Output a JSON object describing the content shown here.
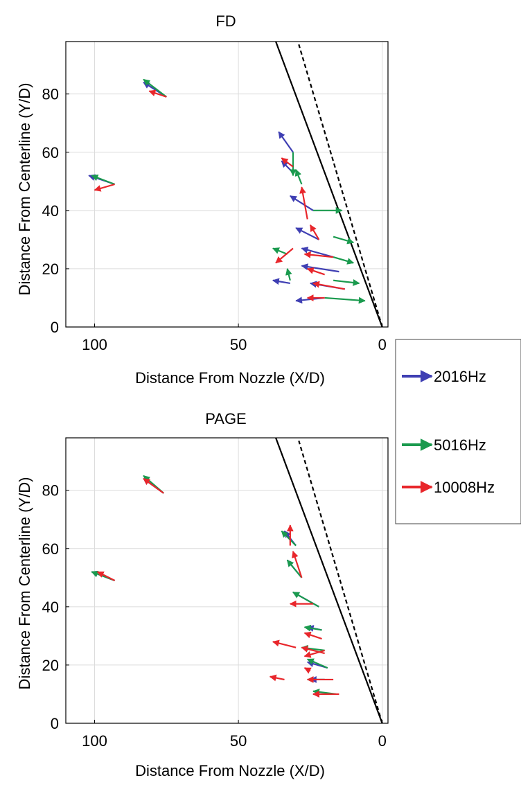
{
  "legend": {
    "entries": [
      {
        "label": "2016Hz",
        "color": "#3f3fb3"
      },
      {
        "label": "5016Hz",
        "color": "#1a9a4e"
      },
      {
        "label": "10008Hz",
        "color": "#e8262b"
      }
    ]
  },
  "chart_data": [
    {
      "type": "vector",
      "title": "FD",
      "xlabel": "Distance From Nozzle (X/D)",
      "ylabel": "Distance From Centerline (Y/D)",
      "x_reversed": true,
      "xlim": [
        110,
        -2
      ],
      "ylim": [
        0,
        98
      ],
      "xticks": [
        100,
        50,
        0
      ],
      "yticks": [
        0,
        20,
        40,
        60,
        80
      ],
      "grid": true,
      "jet_lines": [
        {
          "style": "solid",
          "points": [
            [
              0,
              0
            ],
            [
              37,
              98
            ]
          ]
        },
        {
          "style": "dashed",
          "points": [
            [
              0,
              0
            ],
            [
              29,
              97
            ]
          ]
        }
      ],
      "series": [
        {
          "name": "2016Hz",
          "color": "#3f3fb3",
          "arrows": [
            [
              75,
              79,
              83,
              84
            ],
            [
              93,
              49,
              102,
              52
            ],
            [
              31,
              60,
              36,
              67
            ],
            [
              31,
              53,
              35,
              57
            ],
            [
              24,
              40,
              32,
              45
            ],
            [
              22,
              30,
              30,
              34
            ],
            [
              17,
              24,
              28,
              27
            ],
            [
              32,
              15,
              38,
              16
            ],
            [
              15,
              19,
              28,
              21
            ],
            [
              13,
              13,
              25,
              15
            ],
            [
              20,
              10,
              30,
              9
            ]
          ]
        },
        {
          "name": "5016Hz",
          "color": "#1a9a4e",
          "arrows": [
            [
              75,
              79,
              83,
              85
            ],
            [
              93,
              49,
              101,
              52
            ],
            [
              31,
              60,
              31,
              52
            ],
            [
              28,
              49,
              30,
              54
            ],
            [
              24,
              40,
              14,
              40
            ],
            [
              17,
              31,
              10,
              29
            ],
            [
              17,
              24,
              10,
              22
            ],
            [
              33,
              25,
              38,
              27
            ],
            [
              32,
              16,
              33,
              20
            ],
            [
              17,
              16,
              8,
              15
            ],
            [
              20,
              10,
              6,
              9
            ]
          ]
        },
        {
          "name": "10008Hz",
          "color": "#e8262b",
          "arrows": [
            [
              75,
              79,
              81,
              81
            ],
            [
              93,
              49,
              100,
              47
            ],
            [
              31,
              55,
              35,
              58
            ],
            [
              26,
              37,
              28,
              48
            ],
            [
              22,
              30,
              25,
              35
            ],
            [
              17,
              24,
              27,
              25
            ],
            [
              31,
              27,
              37,
              22
            ],
            [
              20,
              18,
              26,
              20
            ],
            [
              13,
              13,
              24,
              15
            ],
            [
              20,
              10,
              26,
              10
            ]
          ]
        }
      ]
    },
    {
      "type": "vector",
      "title": "PAGE",
      "xlabel": "Distance From Nozzle (X/D)",
      "ylabel": "Distance From Centerline (Y/D)",
      "x_reversed": true,
      "xlim": [
        110,
        -2
      ],
      "ylim": [
        0,
        98
      ],
      "xticks": [
        100,
        50,
        0
      ],
      "yticks": [
        0,
        20,
        40,
        60,
        80
      ],
      "grid": true,
      "jet_lines": [
        {
          "style": "solid",
          "points": [
            [
              0,
              0
            ],
            [
              37,
              98
            ]
          ]
        },
        {
          "style": "dashed",
          "points": [
            [
              0,
              0
            ],
            [
              29,
              97
            ]
          ]
        }
      ],
      "series": [
        {
          "name": "2016Hz",
          "color": "#3f3fb3",
          "arrows": [
            [
              76,
              79,
              83,
              84
            ],
            [
              93,
              49,
              101,
              52
            ],
            [
              30,
              61,
              34,
              66
            ],
            [
              28,
              50,
              33,
              56
            ],
            [
              22,
              40,
              31,
              45
            ],
            [
              21,
              32,
              26,
              33
            ],
            [
              19,
              19,
              26,
              21
            ],
            [
              20,
              15,
              25,
              15
            ],
            [
              18,
              10,
              24,
              10
            ]
          ]
        },
        {
          "name": "5016Hz",
          "color": "#1a9a4e",
          "arrows": [
            [
              76,
              79,
              83,
              85
            ],
            [
              93,
              49,
              101,
              52
            ],
            [
              30,
              61,
              35,
              66
            ],
            [
              28,
              50,
              33,
              56
            ],
            [
              22,
              40,
              31,
              45
            ],
            [
              21,
              32,
              27,
              33
            ],
            [
              20,
              25,
              28,
              26
            ],
            [
              19,
              19,
              26,
              22
            ],
            [
              20,
              15,
              26,
              15
            ],
            [
              16,
              10,
              24,
              11
            ]
          ]
        },
        {
          "name": "10008Hz",
          "color": "#e8262b",
          "arrows": [
            [
              76,
              79,
              83,
              84
            ],
            [
              93,
              49,
              99,
              52
            ],
            [
              32,
              61,
              32,
              68
            ],
            [
              28,
              50,
              31,
              59
            ],
            [
              24,
              41,
              32,
              41
            ],
            [
              21,
              29,
              27,
              31
            ],
            [
              20,
              25,
              27,
              23
            ],
            [
              30,
              26,
              38,
              28
            ],
            [
              20,
              24,
              28,
              26
            ],
            [
              25,
              18,
              27,
              19
            ],
            [
              17,
              15,
              26,
              15
            ],
            [
              15,
              10,
              24,
              10
            ],
            [
              34,
              15,
              39,
              16
            ]
          ]
        }
      ]
    }
  ]
}
